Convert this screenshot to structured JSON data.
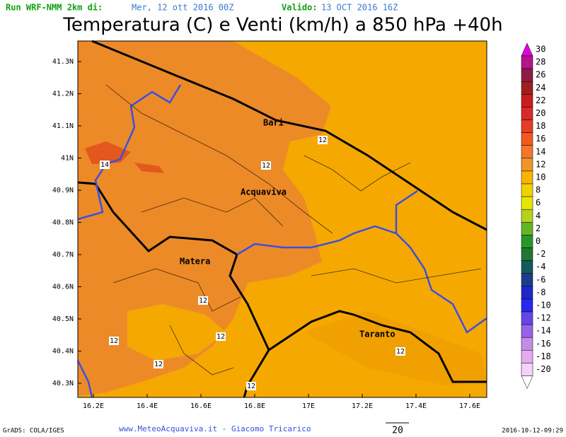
{
  "header": {
    "run_label": "Run WRF-NMM 2km di:",
    "run_date": "Mer, 12 ott 2016 00Z",
    "valid_label": "Valido:",
    "valid_date": "13 OCT 2016 16Z"
  },
  "title": "Temperatura (C) e Venti (km/h) a 850 hPa +40h",
  "map": {
    "lat_labels": [
      "41.3N",
      "41.2N",
      "41.1N",
      "41N",
      "40.9N",
      "40.8N",
      "40.7N",
      "40.6N",
      "40.5N",
      "40.4N",
      "40.3N"
    ],
    "lon_labels": [
      "16.2E",
      "16.4E",
      "16.6E",
      "16.8E",
      "17E",
      "17.2E",
      "17.4E",
      "17.6E"
    ],
    "places": [
      "Bari",
      "Acquaviva",
      "Matera",
      "Taranto"
    ],
    "contour_labels": [
      "12",
      "14",
      "12",
      "12",
      "12",
      "12",
      "12",
      "12",
      "12"
    ]
  },
  "colorbar": {
    "labels": [
      "30",
      "28",
      "26",
      "24",
      "22",
      "20",
      "18",
      "16",
      "14",
      "12",
      "10",
      "8",
      "6",
      "4",
      "2",
      "0",
      "-2",
      "-4",
      "-6",
      "-8",
      "-10",
      "-12",
      "-14",
      "-16",
      "-18",
      "-20"
    ]
  },
  "footer": {
    "grads": "GrADS: COLA/IGES",
    "site": "www.MeteoAcquaviva.it - Giacomo Tricarico",
    "vector_scale": "20",
    "timestamp": "2016-10-12-09:29"
  }
}
